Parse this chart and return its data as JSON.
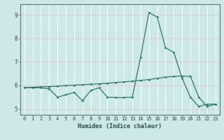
{
  "x": [
    0,
    1,
    2,
    3,
    4,
    5,
    6,
    7,
    8,
    9,
    10,
    11,
    12,
    13,
    14,
    15,
    16,
    17,
    18,
    19,
    20,
    21,
    22,
    23
  ],
  "line1": [
    5.9,
    5.9,
    5.9,
    5.85,
    5.5,
    5.6,
    5.7,
    5.35,
    5.78,
    5.9,
    5.5,
    5.48,
    5.48,
    5.5,
    7.2,
    9.1,
    8.9,
    7.6,
    7.4,
    6.3,
    5.5,
    5.1,
    5.2,
    5.2
  ],
  "line2": [
    5.9,
    5.92,
    5.94,
    5.95,
    5.97,
    5.99,
    6.01,
    6.03,
    6.05,
    6.07,
    6.09,
    6.12,
    6.15,
    6.18,
    6.21,
    6.25,
    6.3,
    6.35,
    6.38,
    6.4,
    6.38,
    5.5,
    5.1,
    5.2
  ],
  "line_color": "#2a7a6a",
  "background_color": "#cce8e8",
  "grid_h_color": "#e8c8c8",
  "grid_v_color": "#ffffff",
  "xlabel": "Humidex (Indice chaleur)",
  "ylim": [
    4.75,
    9.45
  ],
  "xlim": [
    -0.5,
    23.5
  ],
  "yticks": [
    5,
    6,
    7,
    8,
    9
  ],
  "xticks": [
    0,
    1,
    2,
    3,
    4,
    5,
    6,
    7,
    8,
    9,
    10,
    11,
    12,
    13,
    14,
    15,
    16,
    17,
    18,
    19,
    20,
    21,
    22,
    23
  ]
}
